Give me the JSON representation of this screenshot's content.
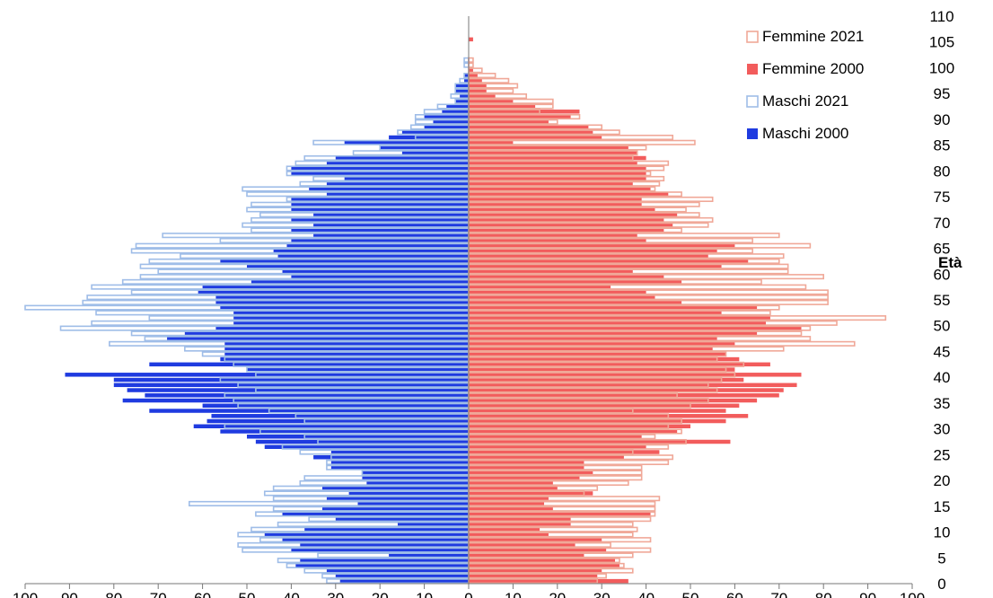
{
  "chart_data": {
    "type": "bar",
    "orientation": "horizontal",
    "subtype": "population-pyramid",
    "title": "",
    "ylabel": "Età",
    "xlabel": "",
    "xlim": [
      -100,
      100
    ],
    "ylim": [
      0,
      110
    ],
    "x_ticks": [
      -100,
      -90,
      -80,
      -70,
      -60,
      -50,
      -40,
      -30,
      -20,
      -10,
      0,
      10,
      20,
      30,
      40,
      50,
      60,
      70,
      80,
      90,
      100
    ],
    "x_tick_labels": [
      "100",
      "90",
      "80",
      "70",
      "60",
      "50",
      "40",
      "30",
      "20",
      "10",
      "0",
      "10",
      "20",
      "30",
      "40",
      "50",
      "60",
      "70",
      "80",
      "90",
      "100"
    ],
    "y_ticks": [
      0,
      5,
      10,
      15,
      20,
      25,
      30,
      35,
      40,
      45,
      50,
      55,
      60,
      65,
      70,
      75,
      80,
      85,
      90,
      95,
      100,
      105,
      110
    ],
    "y_tick_labels": [
      "0",
      "5",
      "10",
      "15",
      "20",
      "25",
      "30",
      "35",
      "40",
      "45",
      "50",
      "55",
      "60",
      "65",
      "70",
      "75",
      "80",
      "85",
      "90",
      "95",
      "100",
      "105",
      "110"
    ],
    "grid": false,
    "legend_position": "top-right",
    "ages": [
      0,
      1,
      2,
      3,
      4,
      5,
      6,
      7,
      8,
      9,
      10,
      11,
      12,
      13,
      14,
      15,
      16,
      17,
      18,
      19,
      20,
      21,
      22,
      23,
      24,
      25,
      26,
      27,
      28,
      29,
      30,
      31,
      32,
      33,
      34,
      35,
      36,
      37,
      38,
      39,
      40,
      41,
      42,
      43,
      44,
      45,
      46,
      47,
      48,
      49,
      50,
      51,
      52,
      53,
      54,
      55,
      56,
      57,
      58,
      59,
      60,
      61,
      62,
      63,
      64,
      65,
      66,
      67,
      68,
      69,
      70,
      71,
      72,
      73,
      74,
      75,
      76,
      77,
      78,
      79,
      80,
      81,
      82,
      83,
      84,
      85,
      86,
      87,
      88,
      89,
      90,
      91,
      92,
      93,
      94,
      95,
      96,
      97,
      98,
      99,
      100,
      101,
      102,
      103,
      104,
      105
    ],
    "series": [
      {
        "name": "Maschi 2000",
        "side": "left",
        "style": "filled",
        "color": "#1f3be0",
        "values": [
          29,
          30,
          32,
          39,
          38,
          18,
          40,
          38,
          42,
          46,
          37,
          16,
          30,
          42,
          33,
          25,
          32,
          27,
          33,
          23,
          24,
          24,
          31,
          31,
          35,
          31,
          46,
          48,
          50,
          56,
          62,
          59,
          58,
          72,
          60,
          78,
          73,
          77,
          80,
          80,
          91,
          50,
          72,
          56,
          55,
          55,
          55,
          68,
          64,
          57,
          53,
          53,
          53,
          56,
          57,
          57,
          61,
          60,
          49,
          40,
          42,
          50,
          56,
          43,
          44,
          41,
          40,
          35,
          40,
          35,
          40,
          35,
          40,
          40,
          40,
          32,
          36,
          32,
          28,
          40,
          40,
          32,
          30,
          15,
          20,
          28,
          18,
          15,
          10,
          8,
          10,
          6,
          5,
          3,
          2,
          3,
          3,
          1,
          1,
          0,
          0,
          0,
          0,
          0,
          0,
          0
        ]
      },
      {
        "name": "Maschi 2021",
        "side": "left",
        "style": "outline",
        "color": "#9fbde8",
        "values": [
          32,
          33,
          37,
          41,
          43,
          34,
          51,
          52,
          47,
          52,
          49,
          43,
          36,
          48,
          44,
          63,
          44,
          46,
          44,
          38,
          37,
          24,
          32,
          32,
          31,
          38,
          42,
          34,
          37,
          47,
          55,
          37,
          39,
          45,
          52,
          53,
          55,
          48,
          52,
          56,
          48,
          50,
          53,
          55,
          60,
          64,
          81,
          73,
          76,
          92,
          85,
          72,
          84,
          100,
          87,
          86,
          76,
          85,
          78,
          74,
          70,
          74,
          72,
          65,
          76,
          75,
          56,
          69,
          49,
          51,
          49,
          47,
          50,
          49,
          41,
          50,
          51,
          38,
          35,
          41,
          41,
          39,
          37,
          26,
          20,
          35,
          12,
          16,
          13,
          12,
          12,
          10,
          7,
          3,
          4,
          3,
          3,
          2,
          1,
          0,
          1,
          1,
          0,
          0,
          0,
          0
        ]
      },
      {
        "name": "Femmine 2000",
        "side": "right",
        "style": "filled",
        "color": "#f25c5c",
        "values": [
          36,
          29,
          30,
          34,
          33,
          26,
          31,
          24,
          30,
          18,
          16,
          23,
          23,
          41,
          19,
          17,
          18,
          28,
          20,
          19,
          25,
          28,
          26,
          26,
          35,
          43,
          40,
          59,
          39,
          47,
          50,
          58,
          63,
          58,
          61,
          65,
          70,
          71,
          74,
          62,
          75,
          60,
          68,
          61,
          58,
          55,
          60,
          56,
          65,
          75,
          67,
          68,
          57,
          65,
          48,
          42,
          40,
          32,
          48,
          44,
          37,
          57,
          63,
          54,
          56,
          60,
          40,
          38,
          44,
          46,
          44,
          47,
          42,
          39,
          39,
          45,
          41,
          37,
          40,
          40,
          40,
          38,
          40,
          38,
          36,
          10,
          30,
          28,
          27,
          18,
          23,
          25,
          15,
          10,
          6,
          4,
          4,
          3,
          2,
          1,
          0,
          0,
          0,
          0,
          0,
          1
        ]
      },
      {
        "name": "Femmine 2021",
        "side": "right",
        "style": "outline",
        "color": "#f0a898",
        "values": [
          29,
          31,
          37,
          35,
          34,
          37,
          41,
          32,
          41,
          37,
          38,
          37,
          41,
          42,
          42,
          42,
          43,
          26,
          29,
          36,
          39,
          39,
          39,
          45,
          46,
          37,
          45,
          49,
          42,
          48,
          45,
          48,
          45,
          37,
          50,
          54,
          47,
          56,
          54,
          57,
          60,
          58,
          62,
          56,
          58,
          71,
          87,
          77,
          75,
          77,
          83,
          94,
          68,
          70,
          81,
          81,
          81,
          76,
          66,
          80,
          72,
          72,
          70,
          71,
          64,
          77,
          64,
          70,
          48,
          54,
          55,
          52,
          49,
          52,
          55,
          48,
          42,
          43,
          44,
          41,
          44,
          45,
          37,
          38,
          40,
          51,
          46,
          34,
          30,
          20,
          25,
          16,
          19,
          19,
          13,
          10,
          11,
          9,
          6,
          3,
          1,
          1,
          0,
          0,
          0,
          0
        ]
      }
    ]
  }
}
